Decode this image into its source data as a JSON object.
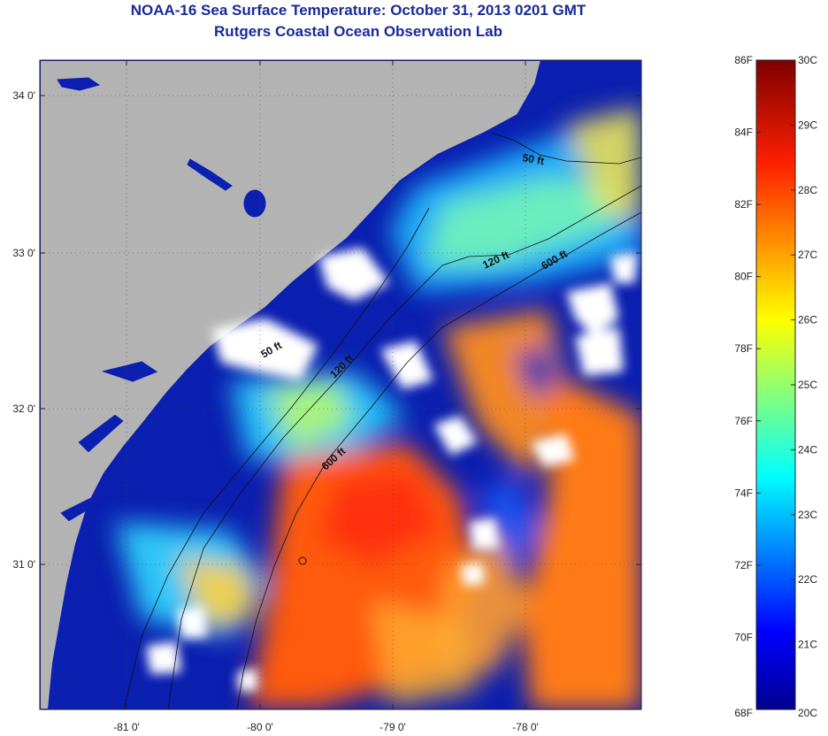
{
  "title": "NOAA-16 Sea Surface Temperature:  October 31, 2013 0201 GMT",
  "subtitle": "Rutgers Coastal Ocean Observation Lab",
  "map": {
    "lon_ticks": [
      "-81 0'",
      "-80 0'",
      "-79 0'",
      "-78 0'"
    ],
    "lat_ticks": [
      "34 0'",
      "33 0'",
      "32 0'",
      "31 0'"
    ],
    "contour_labels": [
      "50 ft",
      "120 ft",
      "600 ft",
      "50 ft",
      "120 ft",
      "600 ft"
    ],
    "colors": {
      "land": "#b3b3b3",
      "cloud": "#ffffff",
      "deep_blue": "#0b1fb0"
    }
  },
  "colorbar": {
    "fahrenheit_labels": [
      "86F",
      "84F",
      "82F",
      "80F",
      "78F",
      "76F",
      "74F",
      "72F",
      "70F",
      "68F"
    ],
    "celsius_labels": [
      "30C",
      "29C",
      "28C",
      "27C",
      "26C",
      "25C",
      "24C",
      "23C",
      "22C",
      "21C",
      "20C"
    ]
  }
}
